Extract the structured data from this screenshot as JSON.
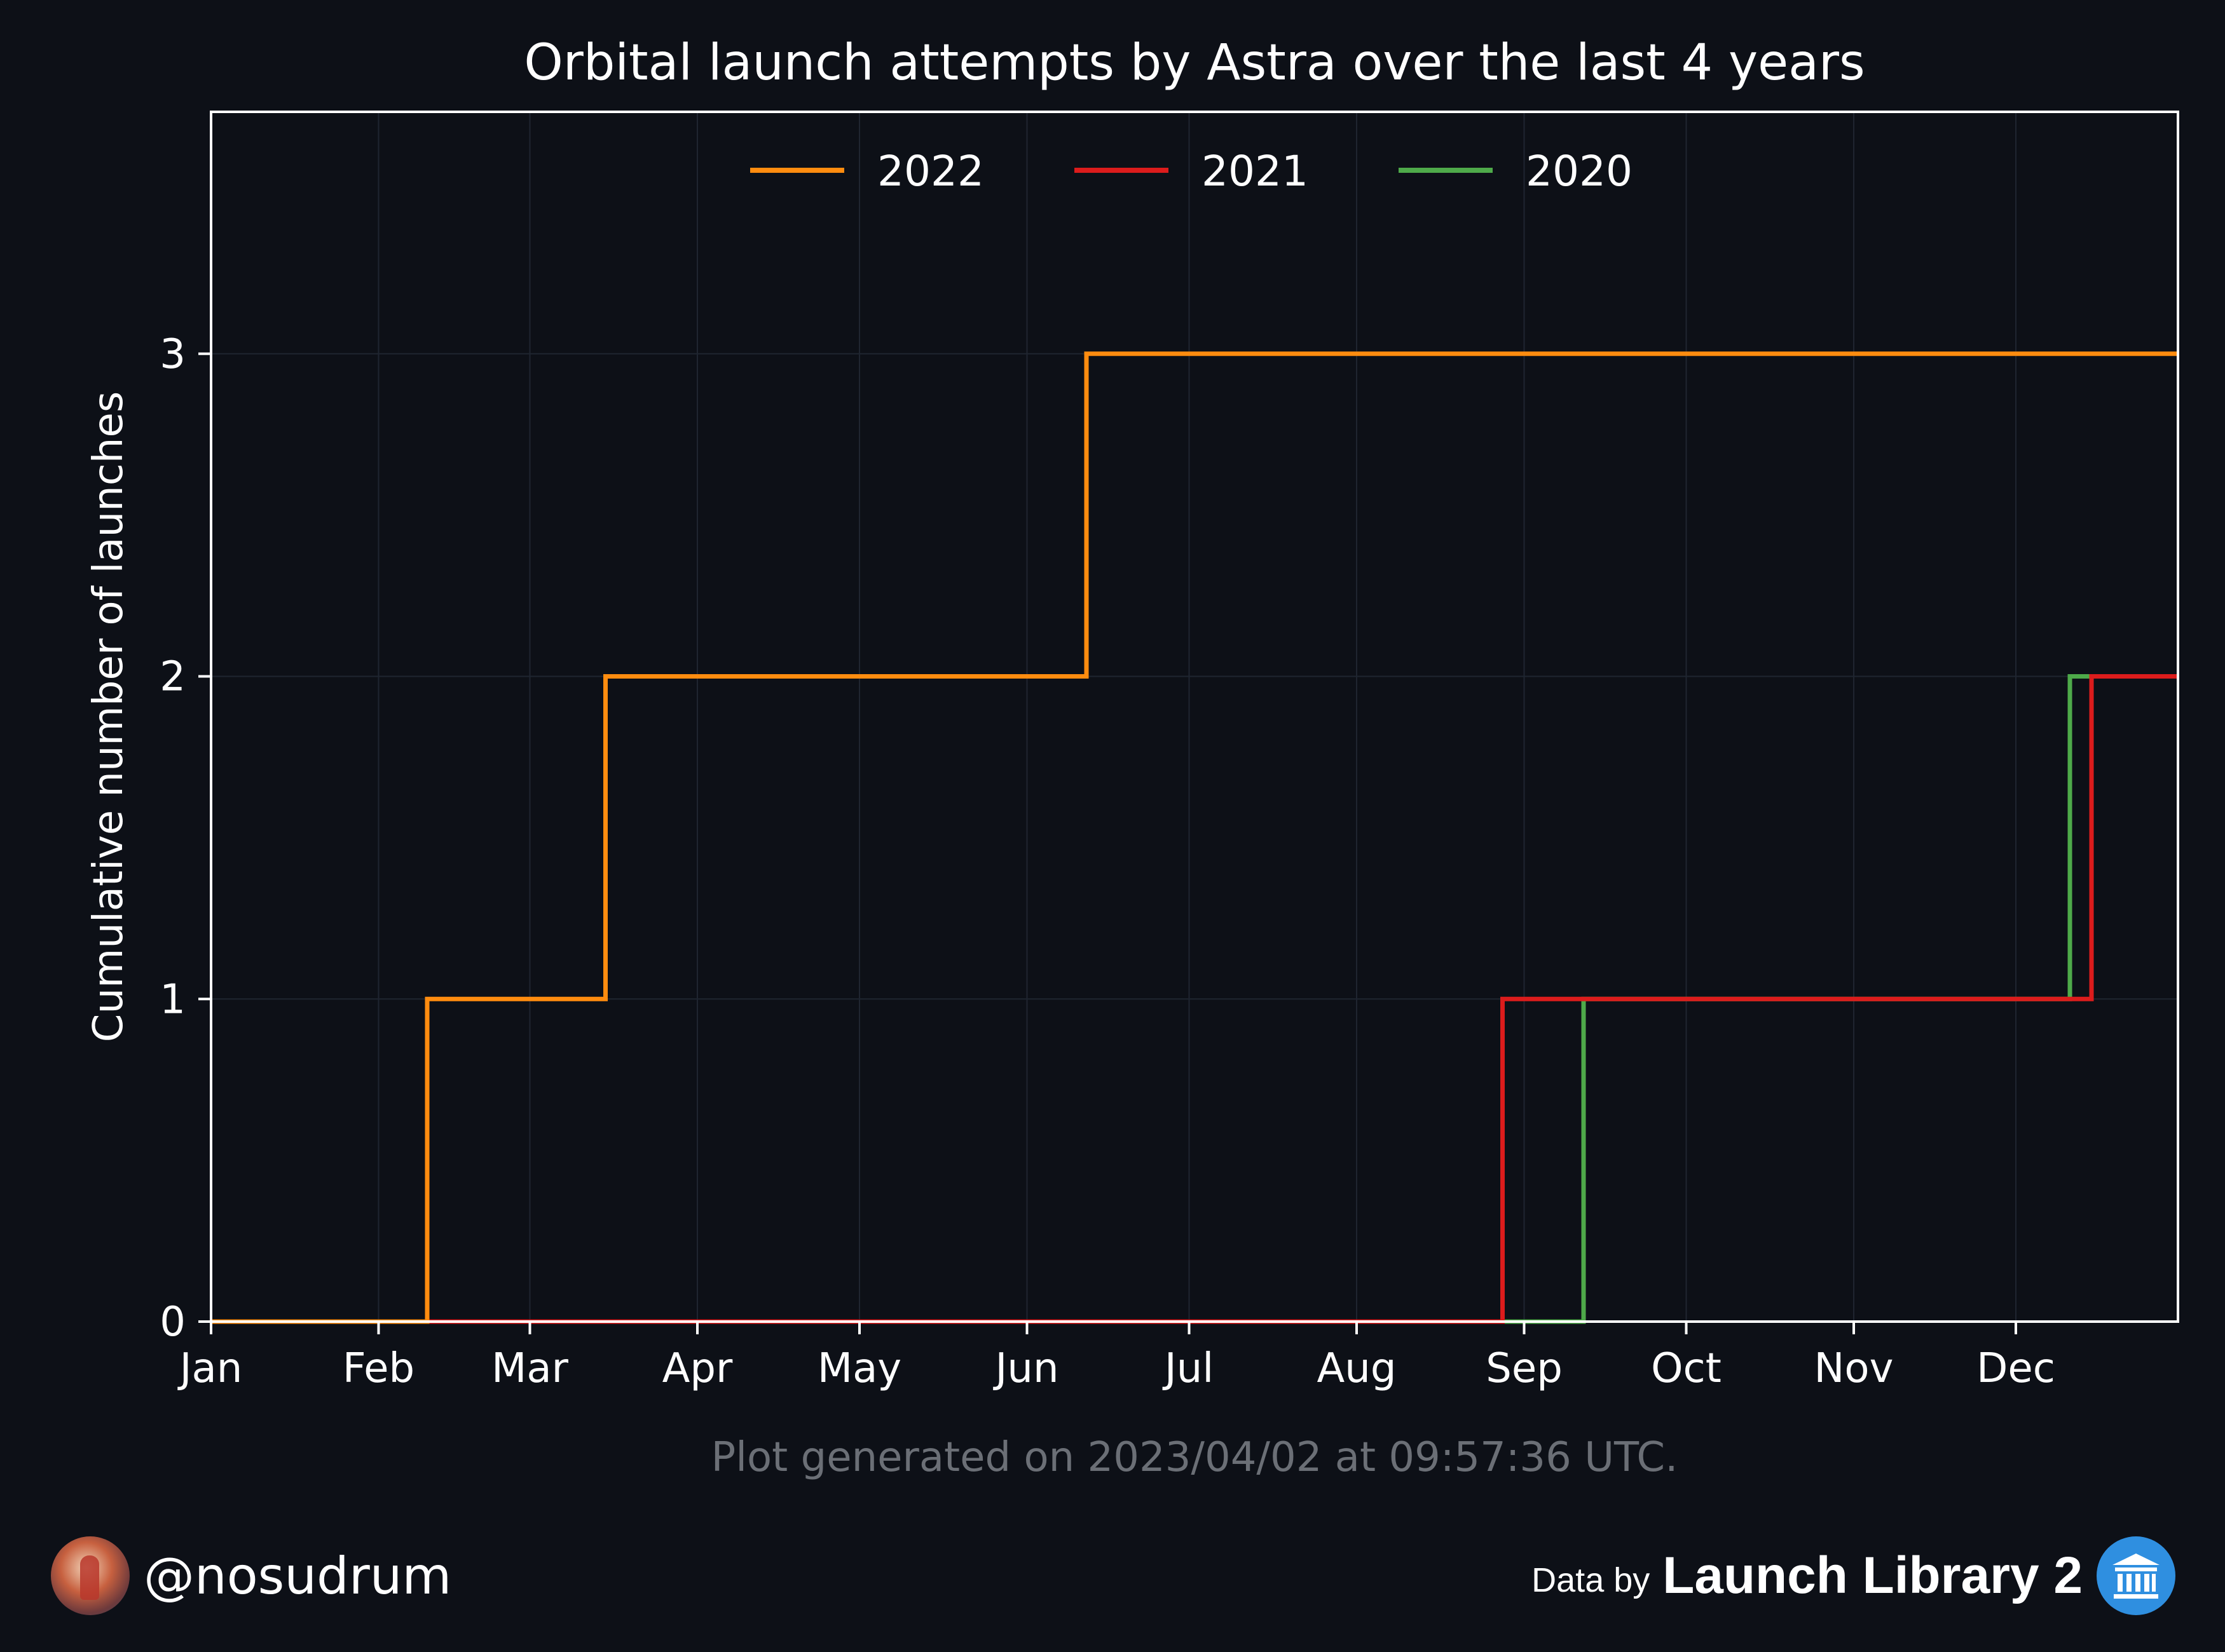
{
  "chart_data": {
    "type": "line",
    "step": true,
    "title": "Orbital launch attempts by Astra over the last 4 years",
    "xlabel": "",
    "ylabel": "Cumulative number of launches",
    "x_domain": [
      "Jan 1",
      "Dec 31"
    ],
    "ylim": [
      0,
      3.75
    ],
    "x_ticks": [
      "Jan",
      "Feb",
      "Mar",
      "Apr",
      "May",
      "Jun",
      "Jul",
      "Aug",
      "Sep",
      "Oct",
      "Nov",
      "Dec"
    ],
    "y_ticks": [
      0,
      1,
      2,
      3
    ],
    "grid": true,
    "legend": "top-center",
    "series": [
      {
        "name": "2022",
        "color": "#ff8c0f",
        "launch_dates": [
          "Feb 10",
          "Mar 15",
          "Jun 12"
        ],
        "values": [
          1,
          2,
          3
        ]
      },
      {
        "name": "2021",
        "color": "#dc1c1c",
        "launch_dates": [
          "Aug 28",
          "Dec 15"
        ],
        "values": [
          1,
          2
        ]
      },
      {
        "name": "2020",
        "color": "#4eaa4a",
        "launch_dates": [
          "Sep 12",
          "Dec 11"
        ],
        "values": [
          1,
          2
        ]
      }
    ]
  },
  "note": "Plot generated on 2023/04/02 at 09:57:36 UTC.",
  "footer": {
    "handle": "@nosudrum",
    "data_by": "Data by",
    "source": "Launch Library 2"
  },
  "colors": {
    "background": "#0d1017",
    "grid": "#1f2530",
    "note": "#6b6f76"
  },
  "icons": [
    "avatar",
    "library-icon"
  ]
}
